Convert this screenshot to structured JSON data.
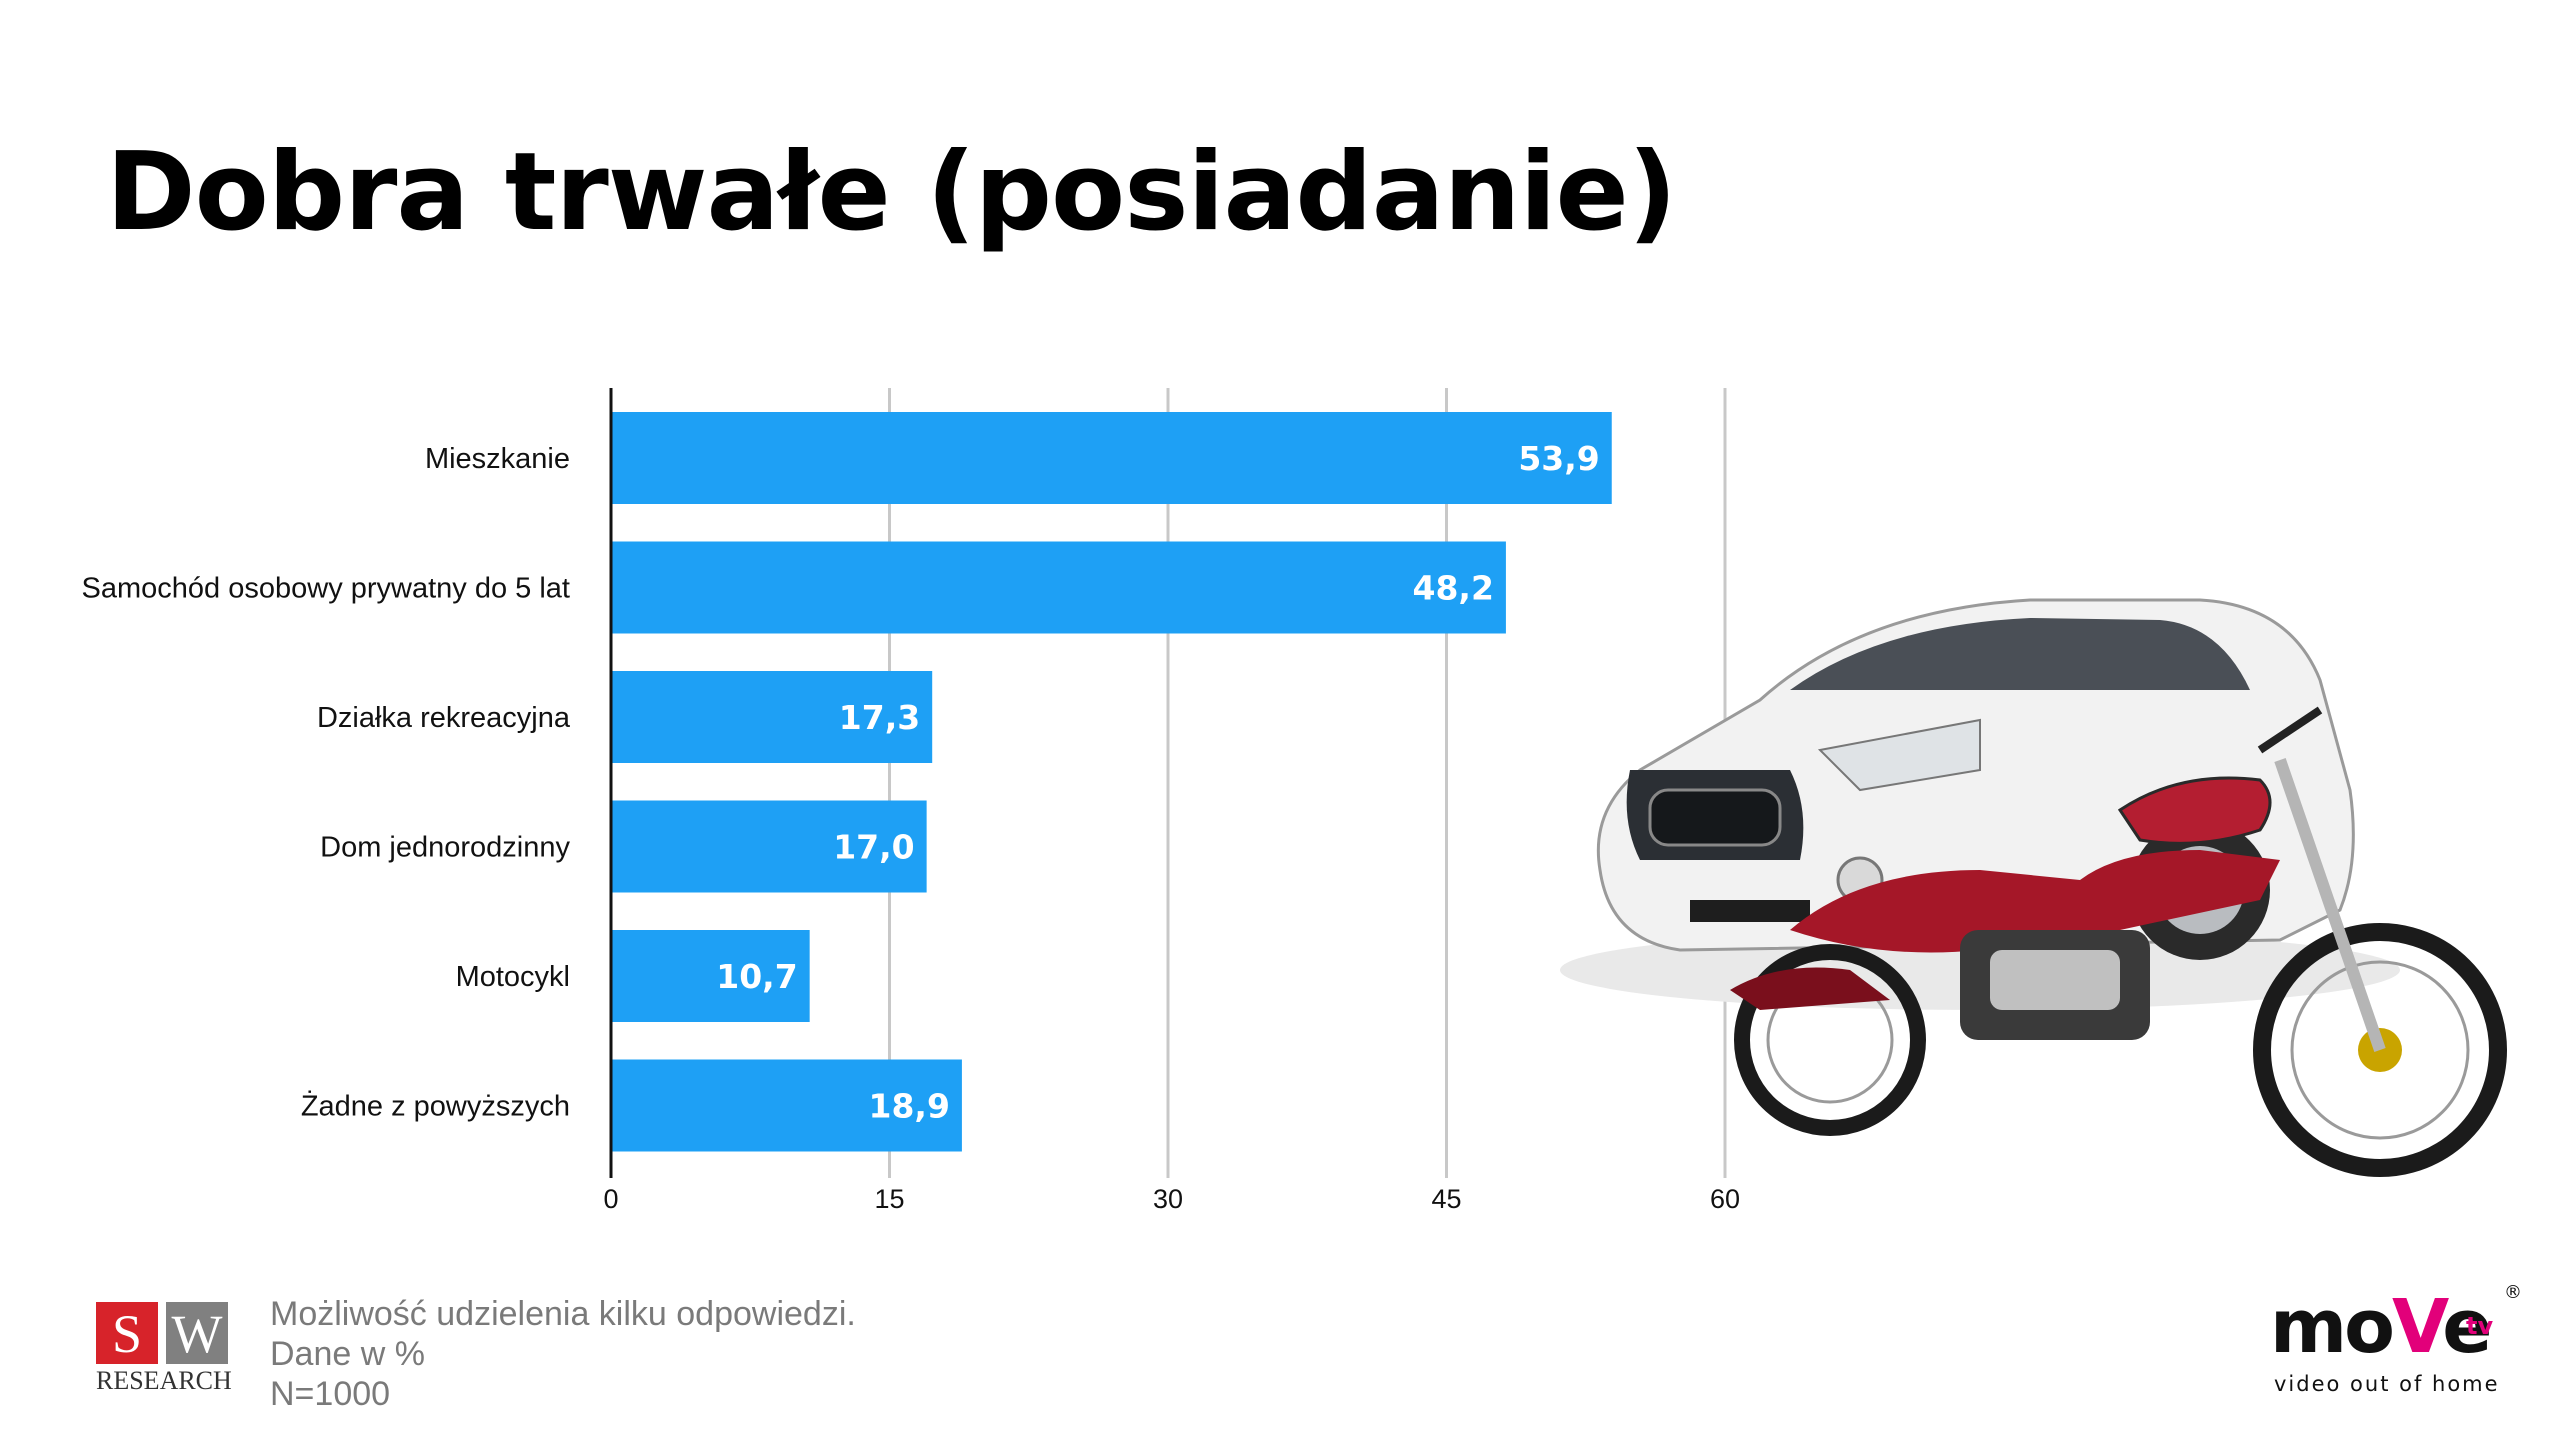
{
  "title": "Dobra trwałe (posiadanie)",
  "chart_data": {
    "type": "bar",
    "orientation": "horizontal",
    "categories": [
      "Mieszkanie",
      "Samochód osobowy prywatny do 5 lat",
      "Działka rekreacyjna",
      "Dom jednorodzinny",
      "Motocykl",
      "Żadne z powyższych"
    ],
    "values": [
      53.9,
      48.2,
      17.3,
      17.0,
      10.7,
      18.9
    ],
    "value_labels": [
      "53,9",
      "48,2",
      "17,3",
      "17,0",
      "10,7",
      "18,9"
    ],
    "x_ticks": [
      0,
      15,
      30,
      45,
      60
    ],
    "xlim": [
      0,
      60
    ],
    "grid": true,
    "bar_color": "#1ea0f5"
  },
  "footer": {
    "logo_left": {
      "letter1": "S",
      "letter2": "W",
      "word": "RESEARCH"
    },
    "notes": [
      "Możliwość udzielenia kilku odpowiedzi.",
      "Dane w %",
      "N=1000"
    ],
    "logo_right": {
      "brand_a": "mo",
      "brand_v": "V",
      "brand_e": "e",
      "brand_tv": "tv",
      "registered": "®",
      "tagline": "video out of home"
    }
  },
  "colors": {
    "accent": "#1ea0f5",
    "brand_pink": "#e2007a",
    "sw_red": "#d7232a",
    "sw_gray": "#808080"
  }
}
